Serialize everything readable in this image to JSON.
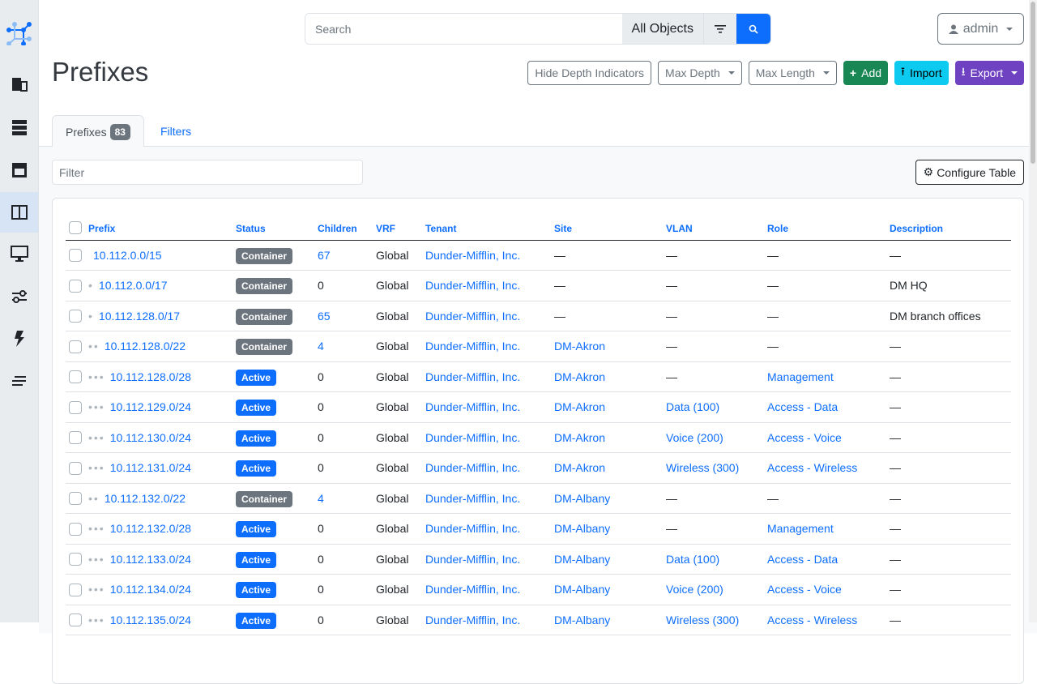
{
  "sidebar": {
    "items": [
      {
        "icon": "organization-icon"
      },
      {
        "icon": "devices-icon"
      },
      {
        "icon": "connections-icon"
      },
      {
        "icon": "ipam-icon",
        "active": true
      },
      {
        "icon": "virtualization-icon"
      },
      {
        "icon": "circuits-icon"
      },
      {
        "icon": "power-icon"
      },
      {
        "icon": "other-icon"
      }
    ]
  },
  "header": {
    "search_placeholder": "Search",
    "search_scope": "All Objects",
    "user": "admin"
  },
  "page": {
    "title": "Prefixes"
  },
  "actions": {
    "hide_depth": "Hide Depth Indicators",
    "max_depth": "Max Depth",
    "max_length": "Max Length",
    "add": "Add",
    "import": "Import",
    "export": "Export"
  },
  "colors": {
    "primary": "#0d6efd",
    "add": "#198754",
    "import": "#0dcaf0",
    "export": "#6f42c1",
    "container": "#6c757d",
    "active": "#0d6efd"
  },
  "tabs": [
    {
      "label": "Prefixes",
      "count": "83"
    },
    {
      "label": "Filters"
    }
  ],
  "table": {
    "filter_placeholder": "Filter",
    "configure": "Configure Table",
    "columns": [
      "Prefix",
      "Status",
      "Children",
      "VRF",
      "Tenant",
      "Site",
      "VLAN",
      "Role",
      "Description"
    ],
    "rows": [
      {
        "depth": 0,
        "prefix": "10.112.0.0/15",
        "status": "Container",
        "children": "67",
        "vrf": "Global",
        "tenant": "Dunder-Mifflin, Inc.",
        "site": "—",
        "vlan": "—",
        "role": "—",
        "description": "—"
      },
      {
        "depth": 1,
        "prefix": "10.112.0.0/17",
        "status": "Container",
        "children": "0",
        "vrf": "Global",
        "tenant": "Dunder-Mifflin, Inc.",
        "site": "—",
        "vlan": "—",
        "role": "—",
        "description": "DM HQ"
      },
      {
        "depth": 1,
        "prefix": "10.112.128.0/17",
        "status": "Container",
        "children": "65",
        "vrf": "Global",
        "tenant": "Dunder-Mifflin, Inc.",
        "site": "—",
        "vlan": "—",
        "role": "—",
        "description": "DM branch offices"
      },
      {
        "depth": 2,
        "prefix": "10.112.128.0/22",
        "status": "Container",
        "children": "4",
        "vrf": "Global",
        "tenant": "Dunder-Mifflin, Inc.",
        "site": "DM-Akron",
        "vlan": "—",
        "role": "—",
        "description": "—"
      },
      {
        "depth": 3,
        "prefix": "10.112.128.0/28",
        "status": "Active",
        "children": "0",
        "vrf": "Global",
        "tenant": "Dunder-Mifflin, Inc.",
        "site": "DM-Akron",
        "vlan": "—",
        "role": "Management",
        "description": "—"
      },
      {
        "depth": 3,
        "prefix": "10.112.129.0/24",
        "status": "Active",
        "children": "0",
        "vrf": "Global",
        "tenant": "Dunder-Mifflin, Inc.",
        "site": "DM-Akron",
        "vlan": "Data (100)",
        "role": "Access - Data",
        "description": "—"
      },
      {
        "depth": 3,
        "prefix": "10.112.130.0/24",
        "status": "Active",
        "children": "0",
        "vrf": "Global",
        "tenant": "Dunder-Mifflin, Inc.",
        "site": "DM-Akron",
        "vlan": "Voice (200)",
        "role": "Access - Voice",
        "description": "—"
      },
      {
        "depth": 3,
        "prefix": "10.112.131.0/24",
        "status": "Active",
        "children": "0",
        "vrf": "Global",
        "tenant": "Dunder-Mifflin, Inc.",
        "site": "DM-Akron",
        "vlan": "Wireless (300)",
        "role": "Access - Wireless",
        "description": "—"
      },
      {
        "depth": 2,
        "prefix": "10.112.132.0/22",
        "status": "Container",
        "children": "4",
        "vrf": "Global",
        "tenant": "Dunder-Mifflin, Inc.",
        "site": "DM-Albany",
        "vlan": "—",
        "role": "—",
        "description": "—"
      },
      {
        "depth": 3,
        "prefix": "10.112.132.0/28",
        "status": "Active",
        "children": "0",
        "vrf": "Global",
        "tenant": "Dunder-Mifflin, Inc.",
        "site": "DM-Albany",
        "vlan": "—",
        "role": "Management",
        "description": "—"
      },
      {
        "depth": 3,
        "prefix": "10.112.133.0/24",
        "status": "Active",
        "children": "0",
        "vrf": "Global",
        "tenant": "Dunder-Mifflin, Inc.",
        "site": "DM-Albany",
        "vlan": "Data (100)",
        "role": "Access - Data",
        "description": "—"
      },
      {
        "depth": 3,
        "prefix": "10.112.134.0/24",
        "status": "Active",
        "children": "0",
        "vrf": "Global",
        "tenant": "Dunder-Mifflin, Inc.",
        "site": "DM-Albany",
        "vlan": "Voice (200)",
        "role": "Access - Voice",
        "description": "—"
      },
      {
        "depth": 3,
        "prefix": "10.112.135.0/24",
        "status": "Active",
        "children": "0",
        "vrf": "Global",
        "tenant": "Dunder-Mifflin, Inc.",
        "site": "DM-Albany",
        "vlan": "Wireless (300)",
        "role": "Access - Wireless",
        "description": "—"
      }
    ]
  }
}
